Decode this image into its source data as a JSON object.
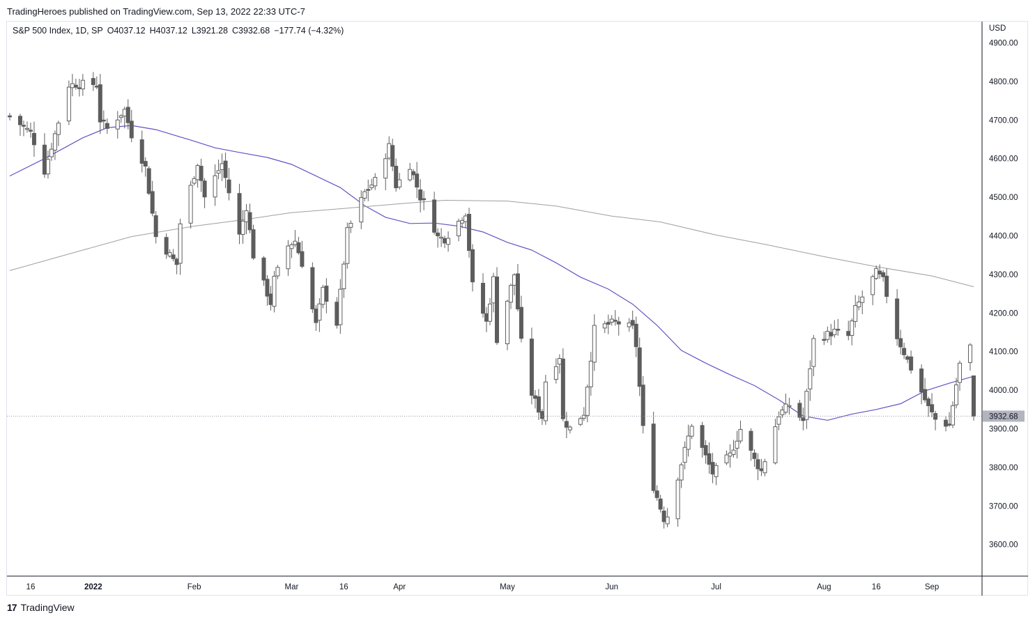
{
  "header": {
    "published_text": "TradingHeroes published on TradingView.com, Sep 13, 2022 22:33 UTC-7"
  },
  "legend": {
    "symbol": "S&P 500 Index, 1D, SP",
    "open": "O4037.12",
    "high": "H4037.12",
    "low": "L3921.28",
    "close": "C3932.68",
    "change": "−177.74 (−4.32%)"
  },
  "footer": {
    "logo_mark": "17",
    "brand": "TradingView"
  },
  "colors": {
    "up_candle_fill": "#ffffff",
    "candle_stroke": "#5d5d5d",
    "down_candle_fill": "#5d5d5d",
    "ma50": "#6a4fc4",
    "ma200": "#9e9e9e",
    "price_label_bg": "#b2b5be"
  },
  "chart_data": {
    "type": "candlestick",
    "currency": "USD",
    "ylim": [
      3520,
      4960
    ],
    "y_ticks": [
      "4900.00",
      "4800.00",
      "4700.00",
      "4600.00",
      "4500.00",
      "4400.00",
      "4300.00",
      "4200.00",
      "4100.00",
      "4000.00",
      "3900.00",
      "3800.00",
      "3700.00",
      "3600.00"
    ],
    "x_ticks": [
      {
        "label": "16",
        "date": "2021-12-16",
        "bold": false
      },
      {
        "label": "2022",
        "date": "2022-01-03",
        "bold": true
      },
      {
        "label": "Feb",
        "date": "2022-02-01",
        "bold": false
      },
      {
        "label": "Mar",
        "date": "2022-03-01",
        "bold": false
      },
      {
        "label": "16",
        "date": "2022-03-16",
        "bold": false
      },
      {
        "label": "Apr",
        "date": "2022-04-01",
        "bold": false
      },
      {
        "label": "May",
        "date": "2022-05-02",
        "bold": false
      },
      {
        "label": "Jun",
        "date": "2022-06-01",
        "bold": false
      },
      {
        "label": "Jul",
        "date": "2022-07-01",
        "bold": false
      },
      {
        "label": "Aug",
        "date": "2022-08-01",
        "bold": false
      },
      {
        "label": "16",
        "date": "2022-08-16",
        "bold": false
      },
      {
        "label": "Sep",
        "date": "2022-09-01",
        "bold": false
      }
    ],
    "last_price": 3932.68,
    "last_price_label": "3932.68",
    "anchors": [
      [
        "2021-12-10",
        4710
      ],
      [
        "2021-12-16",
        4668
      ],
      [
        "2021-12-20",
        4568
      ],
      [
        "2021-12-27",
        4791
      ],
      [
        "2021-12-29",
        4793
      ],
      [
        "2022-01-04",
        4793
      ],
      [
        "2022-01-05",
        4700
      ],
      [
        "2022-01-07",
        4677
      ],
      [
        "2022-01-12",
        4726
      ],
      [
        "2022-01-14",
        4662
      ],
      [
        "2022-01-18",
        4577
      ],
      [
        "2022-01-21",
        4398
      ],
      [
        "2022-01-27",
        4326
      ],
      [
        "2022-01-28",
        4432
      ],
      [
        "2022-02-02",
        4589
      ],
      [
        "2022-02-04",
        4500
      ],
      [
        "2022-02-09",
        4587
      ],
      [
        "2022-02-14",
        4401
      ],
      [
        "2022-02-16",
        4475
      ],
      [
        "2022-02-18",
        4349
      ],
      [
        "2022-02-23",
        4226
      ],
      [
        "2022-02-24",
        4288
      ],
      [
        "2022-02-28",
        4374
      ],
      [
        "2022-03-02",
        4387
      ],
      [
        "2022-03-04",
        4329
      ],
      [
        "2022-03-08",
        4170
      ],
      [
        "2022-03-10",
        4260
      ],
      [
        "2022-03-14",
        4173
      ],
      [
        "2022-03-17",
        4411
      ],
      [
        "2022-03-22",
        4512
      ],
      [
        "2022-03-25",
        4543
      ],
      [
        "2022-03-29",
        4632
      ],
      [
        "2022-03-31",
        4530
      ],
      [
        "2022-04-04",
        4583
      ],
      [
        "2022-04-07",
        4500
      ],
      [
        "2022-04-08",
        4488
      ],
      [
        "2022-04-12",
        4397
      ],
      [
        "2022-04-14",
        4392
      ],
      [
        "2022-04-20",
        4460
      ],
      [
        "2022-04-22",
        4272
      ],
      [
        "2022-04-26",
        4176
      ],
      [
        "2022-04-28",
        4288
      ],
      [
        "2022-04-29",
        4132
      ],
      [
        "2022-05-04",
        4300
      ],
      [
        "2022-05-06",
        4124
      ],
      [
        "2022-05-09",
        3991
      ],
      [
        "2022-05-12",
        3930
      ],
      [
        "2022-05-13",
        4024
      ],
      [
        "2022-05-17",
        4088
      ],
      [
        "2022-05-18",
        3923
      ],
      [
        "2022-05-20",
        3901
      ],
      [
        "2022-05-24",
        3941
      ],
      [
        "2022-05-27",
        4158
      ],
      [
        "2022-06-02",
        4177
      ],
      [
        "2022-06-07",
        4161
      ],
      [
        "2022-06-08",
        4116
      ],
      [
        "2022-06-10",
        3901
      ],
      [
        "2022-06-13",
        3750
      ],
      [
        "2022-06-16",
        3667
      ],
      [
        "2022-06-17",
        3675
      ],
      [
        "2022-06-24",
        3912
      ],
      [
        "2022-06-30",
        3785
      ],
      [
        "2022-07-05",
        3831
      ],
      [
        "2022-07-08",
        3899
      ],
      [
        "2022-07-12",
        3819
      ],
      [
        "2022-07-14",
        3790
      ],
      [
        "2022-07-19",
        3937
      ],
      [
        "2022-07-22",
        3962
      ],
      [
        "2022-07-26",
        3921
      ],
      [
        "2022-07-29",
        4130
      ],
      [
        "2022-08-04",
        4152
      ],
      [
        "2022-08-08",
        4140
      ],
      [
        "2022-08-10",
        4210
      ],
      [
        "2022-08-16",
        4305
      ],
      [
        "2022-08-18",
        4284
      ],
      [
        "2022-08-22",
        4138
      ],
      [
        "2022-08-26",
        4057
      ],
      [
        "2022-08-31",
        3955
      ],
      [
        "2022-09-02",
        3924
      ],
      [
        "2022-09-06",
        3909
      ],
      [
        "2022-09-09",
        4067
      ],
      [
        "2022-09-12",
        4110
      ],
      [
        "2022-09-13",
        3932.68
      ]
    ],
    "series": [
      {
        "kind": "ma",
        "window": 50,
        "color": "#6a4fc4",
        "points": [
          [
            "2021-12-10",
            4555
          ],
          [
            "2021-12-20",
            4600
          ],
          [
            "2021-12-31",
            4654
          ],
          [
            "2022-01-07",
            4680
          ],
          [
            "2022-01-14",
            4686
          ],
          [
            "2022-01-21",
            4675
          ],
          [
            "2022-01-31",
            4648
          ],
          [
            "2022-02-07",
            4628
          ],
          [
            "2022-02-14",
            4616
          ],
          [
            "2022-02-22",
            4603
          ],
          [
            "2022-03-01",
            4585
          ],
          [
            "2022-03-08",
            4555
          ],
          [
            "2022-03-15",
            4525
          ],
          [
            "2022-03-22",
            4478
          ],
          [
            "2022-03-28",
            4448
          ],
          [
            "2022-04-04",
            4432
          ],
          [
            "2022-04-11",
            4433
          ],
          [
            "2022-04-18",
            4425
          ],
          [
            "2022-04-25",
            4410
          ],
          [
            "2022-05-02",
            4383
          ],
          [
            "2022-05-09",
            4363
          ],
          [
            "2022-05-16",
            4330
          ],
          [
            "2022-05-23",
            4293
          ],
          [
            "2022-05-31",
            4262
          ],
          [
            "2022-06-07",
            4223
          ],
          [
            "2022-06-14",
            4168
          ],
          [
            "2022-06-21",
            4103
          ],
          [
            "2022-06-28",
            4070
          ],
          [
            "2022-07-05",
            4040
          ],
          [
            "2022-07-12",
            4012
          ],
          [
            "2022-07-19",
            3975
          ],
          [
            "2022-07-26",
            3933
          ],
          [
            "2022-08-02",
            3922
          ],
          [
            "2022-08-09",
            3938
          ],
          [
            "2022-08-16",
            3950
          ],
          [
            "2022-08-23",
            3965
          ],
          [
            "2022-08-30",
            3998
          ],
          [
            "2022-09-06",
            4018
          ],
          [
            "2022-09-13",
            4036
          ]
        ]
      },
      {
        "kind": "ma",
        "window": 200,
        "color": "#9e9e9e",
        "points": [
          [
            "2021-12-10",
            4310
          ],
          [
            "2021-12-31",
            4363
          ],
          [
            "2022-01-14",
            4398
          ],
          [
            "2022-02-01",
            4425
          ],
          [
            "2022-02-14",
            4440
          ],
          [
            "2022-03-01",
            4460
          ],
          [
            "2022-03-16",
            4471
          ],
          [
            "2022-04-01",
            4483
          ],
          [
            "2022-04-14",
            4492
          ],
          [
            "2022-05-02",
            4490
          ],
          [
            "2022-05-16",
            4477
          ],
          [
            "2022-06-01",
            4451
          ],
          [
            "2022-06-15",
            4436
          ],
          [
            "2022-07-01",
            4402
          ],
          [
            "2022-07-15",
            4378
          ],
          [
            "2022-08-01",
            4346
          ],
          [
            "2022-08-16",
            4320
          ],
          [
            "2022-09-01",
            4296
          ],
          [
            "2022-09-13",
            4268
          ]
        ]
      }
    ]
  }
}
